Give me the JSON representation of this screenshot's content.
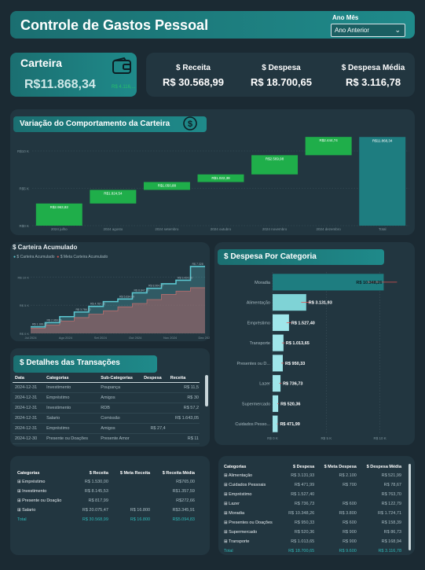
{
  "header": {
    "title": "Controle de Gastos Pessoal",
    "filter_label": "Ano Mês",
    "filter_value": "Ano Anterior"
  },
  "carteira": {
    "title": "Carteira",
    "value": "R$11.868,34",
    "sub": "R$ 4.116,..."
  },
  "kpis": [
    {
      "label": "$ Receita",
      "value": "R$ 30.568,99"
    },
    {
      "label": "$ Despesa",
      "value": "R$ 18.700,65"
    },
    {
      "label": "$ Despesa Média",
      "value": "R$ 3.116,78"
    }
  ],
  "waterfall": {
    "title": "Variação do Comportamento da Carteira",
    "y_ticks": [
      "R$10 K",
      "R$5 K",
      "R$0 K"
    ],
    "chart_data": {
      "type": "bar",
      "categories": [
        "2024 julho",
        "2024 agosto",
        "2024 setembro",
        "2024 outubro",
        "2024 novembro",
        "2024 dezembro",
        "Total"
      ],
      "values": [
        2963.82,
        1824.54,
        1050.88,
        1022.38,
        2569.98,
        2444.74,
        11868.34
      ],
      "labels": [
        "R$2.963,82",
        "R$1.824,54",
        "R$1.050,88",
        "R$1.022,38",
        "R$2.569,98",
        "R$2.444,74",
        "R$11.868,34"
      ],
      "ylim": [
        0,
        12000
      ]
    }
  },
  "acumulado": {
    "title": "$ Carteira Acumulado",
    "legend": [
      "$ Carteira Acumulado",
      "$ Meta Carteira Acumulado"
    ],
    "y_ticks": [
      "R$ 10 K",
      "R$ 5 K",
      "R$ 0 K"
    ],
    "x_ticks": [
      "Jul 2024",
      "Ago 2024",
      "Set 2024",
      "Out 2024",
      "Nov 2024",
      "Dez 2024"
    ],
    "chart_data": {
      "type": "area",
      "series": [
        {
          "name": "$ Carteira Acumulado",
          "values": [
            1166,
            1900,
            2966,
            3786,
            4787,
            5634,
            6100,
            7200,
            8000,
            8800,
            9424,
            11868
          ]
        },
        {
          "name": "$ Meta Carteira Acumulado",
          "values": [
            900,
            1500,
            2200,
            2800,
            3400,
            4000,
            4700,
            5300,
            6000,
            6900,
            7500,
            8100
          ]
        }
      ],
      "point_labels": [
        "R$ 1.166,17",
        "R$ 2.966,56",
        "R$ 3.786,12",
        "R$ 4.787,32",
        "R$ 5.634,69",
        "R$ 8.847,20",
        "R$ 8.904,47",
        "R$ 9.424,00",
        "R$ 7.328"
      ],
      "ylim": [
        0,
        12000
      ]
    }
  },
  "despesa_cat": {
    "title": "$ Despesa Por Categoria",
    "x_ticks": [
      "R$ 0 K",
      "R$ 5 K",
      "R$ 10 K"
    ],
    "chart_data": {
      "type": "bar",
      "categories": [
        "Moradia",
        "Alimentação",
        "Empréstimo",
        "Transporte",
        "Presentes ou D...",
        "Lazer",
        "Supermercado",
        "Cuidados Pesso..."
      ],
      "values": [
        10348.26,
        3131.93,
        1527.4,
        1013.65,
        950.33,
        736.73,
        520.36,
        471.99
      ],
      "labels": [
        "R$ 10.348,26",
        "R$ 3.131,93",
        "R$ 1.527,40",
        "R$ 1.013,65",
        "R$ 950,33",
        "R$ 736,73",
        "R$ 520,36",
        "R$ 471,99"
      ],
      "xlim": [
        0,
        12000
      ]
    }
  },
  "detalhes": {
    "title": "$ Detalhes das Transações",
    "columns": [
      "Data",
      "Categorias",
      "Sub-Categorias",
      "Despesa",
      "Receita"
    ],
    "rows": [
      [
        "2024-12-31",
        "Investimento",
        "Poupança",
        "",
        "R$ 11,5"
      ],
      [
        "2024-12-31",
        "Empréstimo",
        "Amigos",
        "",
        "R$ 30"
      ],
      [
        "2024-12-31",
        "Investimento",
        "RDB",
        "",
        "R$ 57,2"
      ],
      [
        "2024-12-31",
        "Salario",
        "Comissão",
        "",
        "R$ 1.643,05"
      ],
      [
        "2024-12-31",
        "Empréstimo",
        "Amigos",
        "R$ 27,4",
        ""
      ],
      [
        "2024-12-30",
        "Presente ou Doações",
        "Presente Amor",
        "",
        "R$ 11"
      ]
    ]
  },
  "tabela_receita": {
    "columns": [
      "Categorias",
      "$ Receita",
      "$ Meta Receita",
      "$ Receita Média"
    ],
    "rows": [
      [
        "Empréstimo",
        "R$ 1.530,00",
        "",
        "R$765,00"
      ],
      [
        "Investimento",
        "R$ 8.145,53",
        "",
        "R$1.357,59"
      ],
      [
        "Presente ou Doação",
        "R$ 817,99",
        "",
        "R$272,66"
      ],
      [
        "Salario",
        "R$ 20.075,47",
        "R$ 16.800",
        "R$3.345,91"
      ]
    ],
    "total": [
      "Total",
      "R$ 30.568,99",
      "R$ 16.800",
      "R$5.094,83"
    ]
  },
  "tabela_despesa": {
    "columns": [
      "Categorias",
      "$ Despesa",
      "$ Meta Despesa",
      "$ Despesa Média"
    ],
    "rows": [
      [
        "Alimentação",
        "R$ 3.131,93",
        "R$ 2.100",
        "R$ 521,99"
      ],
      [
        "Cuidados Pessoais",
        "R$ 471,99",
        "R$ 700",
        "R$ 78,67"
      ],
      [
        "Empréstimo",
        "R$ 1.527,40",
        "",
        "R$ 763,70"
      ],
      [
        "Lazer",
        "R$ 736,73",
        "R$ 600",
        "R$ 122,79"
      ],
      [
        "Moradia",
        "R$ 10.348,26",
        "R$ 3.800",
        "R$ 1.724,71"
      ],
      [
        "Presentes ou Doações",
        "R$ 950,33",
        "R$ 600",
        "R$ 158,39"
      ],
      [
        "Supermercado",
        "R$ 520,36",
        "R$ 900",
        "R$ 86,73"
      ],
      [
        "Transporte",
        "R$ 1.013,65",
        "R$ 900",
        "R$ 168,94"
      ]
    ],
    "total": [
      "Total",
      "R$ 18.700,65",
      "R$ 9.600",
      "R$ 3.116,78"
    ]
  },
  "colors": {
    "bg": "#1b2a33",
    "panel": "#223640",
    "accent": "#1f8a8a",
    "green": "#1fae4a",
    "red": "#d9534f"
  }
}
